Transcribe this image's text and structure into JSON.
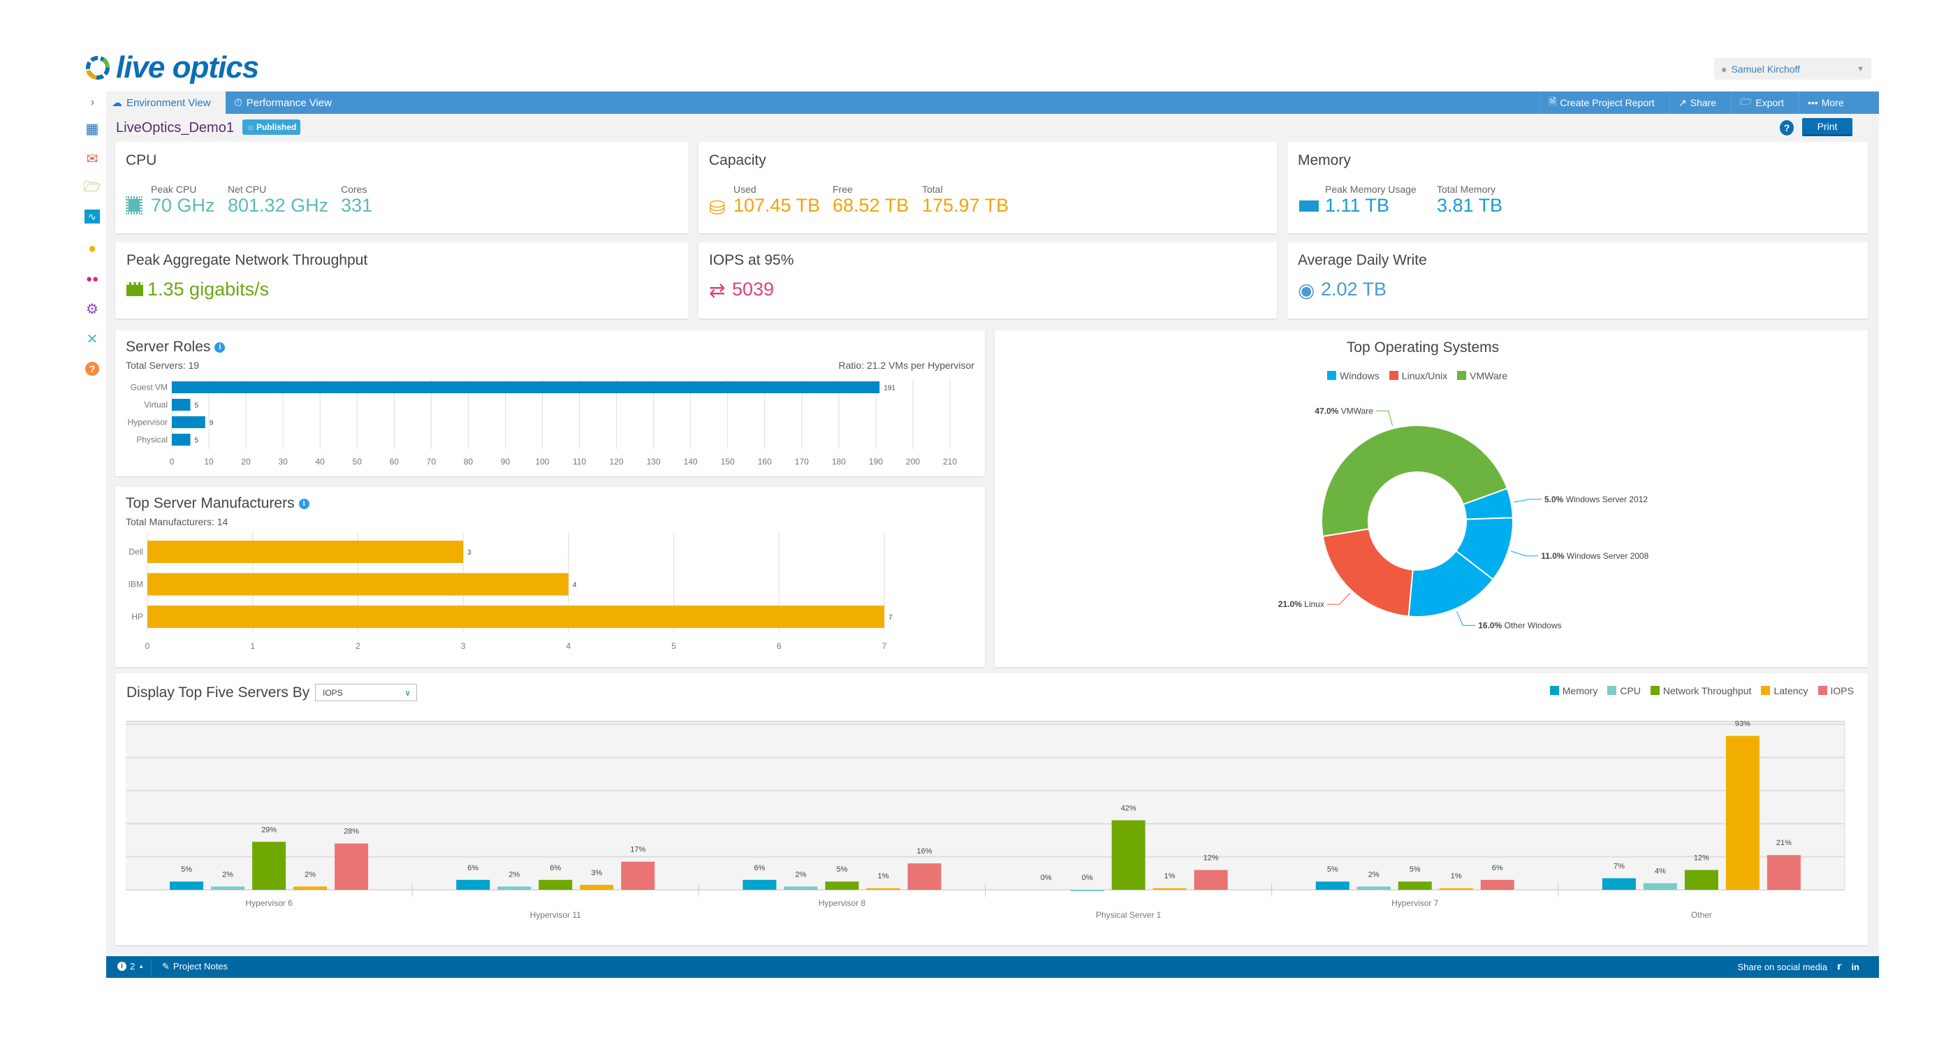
{
  "header": {
    "logo_text": "live optics",
    "user_name": "Samuel Kirchoff"
  },
  "nav": {
    "tabs": [
      {
        "label": "Environment View",
        "icon": "cloud-server-icon"
      },
      {
        "label": "Performance View",
        "icon": "gauge-icon"
      }
    ],
    "actions": [
      {
        "label": "Create Project Report",
        "icon": "document-icon"
      },
      {
        "label": "Share",
        "icon": "share-icon"
      },
      {
        "label": "Export",
        "icon": "export-folder-icon"
      },
      {
        "label": "More",
        "icon": "more-dots-icon"
      }
    ]
  },
  "sidebar": {
    "items": [
      "dashboard-icon",
      "mail-forward-icon",
      "folder-icon",
      "pulse-icon",
      "user-icon",
      "group-icon",
      "gear-icon",
      "tools-icon",
      "help-icon"
    ]
  },
  "project": {
    "name": "LiveOptics_Demo1",
    "status": "Published",
    "print_label": "Print",
    "help": "?"
  },
  "cards": {
    "cpu": {
      "title": "CPU",
      "stats": [
        {
          "label": "Peak CPU",
          "value": "70 GHz"
        },
        {
          "label": "Net CPU",
          "value": "801.32 GHz"
        },
        {
          "label": "Cores",
          "value": "331"
        }
      ]
    },
    "capacity": {
      "title": "Capacity",
      "stats": [
        {
          "label": "Used",
          "value": "107.45 TB"
        },
        {
          "label": "Free",
          "value": "68.52 TB"
        },
        {
          "label": "Total",
          "value": "175.97 TB"
        }
      ]
    },
    "memory": {
      "title": "Memory",
      "stats": [
        {
          "label": "Peak Memory Usage",
          "value": "1.11 TB"
        },
        {
          "label": "Total Memory",
          "value": "3.81 TB"
        }
      ]
    },
    "network": {
      "title": "Peak Aggregate Network Throughput",
      "value": "1.35 gigabits/s"
    },
    "iops": {
      "title": "IOPS at 95%",
      "value": "5039"
    },
    "daily_write": {
      "title": "Average Daily Write",
      "value": "2.02 TB"
    }
  },
  "colors": {
    "cpu": "#5bbab6",
    "capacity": "#f0a30a",
    "memory": "#1a9bd0",
    "network": "#6aa80f",
    "iops": "#e0407b",
    "daily_write": "#4a9ad4",
    "nav": "#4592d0",
    "footer": "#0069a3"
  },
  "chart_data": [
    {
      "type": "bar",
      "orientation": "horizontal",
      "title": "Server Roles",
      "subtitle": "Total Servers: 19",
      "annotation": "Ratio: 21.2 VMs per Hypervisor",
      "categories": [
        "Guest VM",
        "Virtual",
        "Hypervisor",
        "Physical"
      ],
      "values": [
        191,
        5,
        9,
        5
      ],
      "xlim": [
        0,
        210
      ],
      "xticks": [
        0,
        10,
        20,
        30,
        40,
        50,
        60,
        70,
        80,
        90,
        100,
        110,
        120,
        130,
        140,
        150,
        160,
        170,
        180,
        190,
        200,
        210
      ],
      "color": "#0088c7",
      "grid": true
    },
    {
      "type": "bar",
      "orientation": "horizontal",
      "title": "Top Server Manufacturers",
      "subtitle": "Total Manufacturers: 14",
      "categories": [
        "Dell",
        "IBM",
        "HP"
      ],
      "values": [
        3,
        4,
        7
      ],
      "xlim": [
        0,
        7
      ],
      "xticks": [
        0,
        1,
        2,
        3,
        4,
        5,
        6,
        7
      ],
      "color": "#f2ae00",
      "grid": true
    },
    {
      "type": "pie",
      "donut": true,
      "title": "Top Operating Systems",
      "legend": [
        {
          "name": "Windows",
          "color": "#00adef"
        },
        {
          "name": "Linux/Unix",
          "color": "#f05a40"
        },
        {
          "name": "VMWare",
          "color": "#6db33f"
        }
      ],
      "legend_placement": "top",
      "slices": [
        {
          "label": "Windows Server 2012",
          "pct": "5.0%",
          "value": 5,
          "color": "#00adef"
        },
        {
          "label": "Windows Server 2008",
          "pct": "11.0%",
          "value": 11,
          "color": "#00adef"
        },
        {
          "label": "Other Windows",
          "pct": "16.0%",
          "value": 16,
          "color": "#00adef"
        },
        {
          "label": "Linux",
          "pct": "21.0%",
          "value": 21,
          "color": "#f05a40"
        },
        {
          "label": "VMWare",
          "pct": "47.0%",
          "value": 47,
          "color": "#6db33f"
        }
      ]
    },
    {
      "type": "bar",
      "title": "Display Top Five Servers By",
      "selector": {
        "value": "IOPS"
      },
      "legend_placement": "top-right",
      "categories": [
        "Hypervisor 6",
        "Hypervisor 11",
        "Hypervisor 8",
        "Physical Server 1",
        "Hypervisor 7",
        "Other"
      ],
      "series": [
        {
          "name": "Memory",
          "color": "#00a3cc",
          "values": [
            5,
            6,
            6,
            0,
            5,
            7
          ]
        },
        {
          "name": "CPU",
          "color": "#7accc8",
          "values": [
            2,
            2,
            2,
            0,
            2,
            4
          ]
        },
        {
          "name": "Network Throughput",
          "color": "#6fa800",
          "values": [
            29,
            6,
            5,
            42,
            5,
            12
          ]
        },
        {
          "name": "Latency",
          "color": "#f2ae00",
          "values": [
            2,
            3,
            1,
            1,
            1,
            93
          ]
        },
        {
          "name": "IOPS",
          "color": "#ea7373",
          "values": [
            28,
            17,
            16,
            12,
            6,
            21
          ]
        }
      ],
      "ylim": [
        0,
        100
      ],
      "grid": true,
      "value_suffix": "%"
    }
  ],
  "footer": {
    "notifications": "2",
    "notes_label": "Project Notes",
    "share_label": "Share on social media"
  }
}
